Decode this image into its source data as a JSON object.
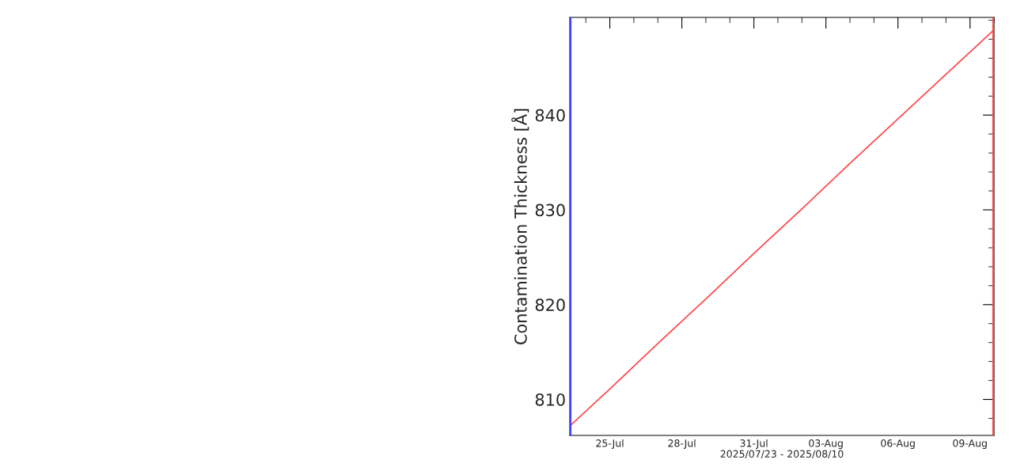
{
  "chart_data": {
    "type": "line",
    "xlabel": "2025/07/23 - 2025/08/10",
    "ylabel": "Contamination Thickness [Å]",
    "x": [
      "2025-07-23T08:00",
      "2025-07-25",
      "2025-07-27",
      "2025-07-29",
      "2025-07-31",
      "2025-08-02",
      "2025-08-04",
      "2025-08-06",
      "2025-08-08",
      "2025-08-09T23:00"
    ],
    "series": [
      {
        "color": "#ff4444",
        "values": [
          807.2,
          811.1,
          815.9,
          820.6,
          825.4,
          830.1,
          834.9,
          839.6,
          844.3,
          848.9
        ]
      }
    ],
    "xlim": [
      "2025-07-23T08:00",
      "2025-08-10T00:00"
    ],
    "xticks": [
      {
        "value": "2025-07-25",
        "label": "25-Jul"
      },
      {
        "value": "2025-07-28",
        "label": "28-Jul"
      },
      {
        "value": "2025-07-31",
        "label": "31-Jul"
      },
      {
        "value": "2025-08-03",
        "label": "03-Aug"
      },
      {
        "value": "2025-08-06",
        "label": "06-Aug"
      },
      {
        "value": "2025-08-09",
        "label": "09-Aug"
      }
    ],
    "ylim": [
      806.2,
      850.3
    ],
    "yticks": [
      810,
      820,
      830,
      840
    ],
    "ref_lines": [
      {
        "axis": "x",
        "value": "2025-07-23T08:00",
        "color": "#4444ff"
      },
      {
        "axis": "x",
        "value": "2025-08-10T00:00",
        "color": "#ff4444"
      }
    ],
    "grid": false,
    "legend": false,
    "marker": "none",
    "line_style": "solid"
  }
}
